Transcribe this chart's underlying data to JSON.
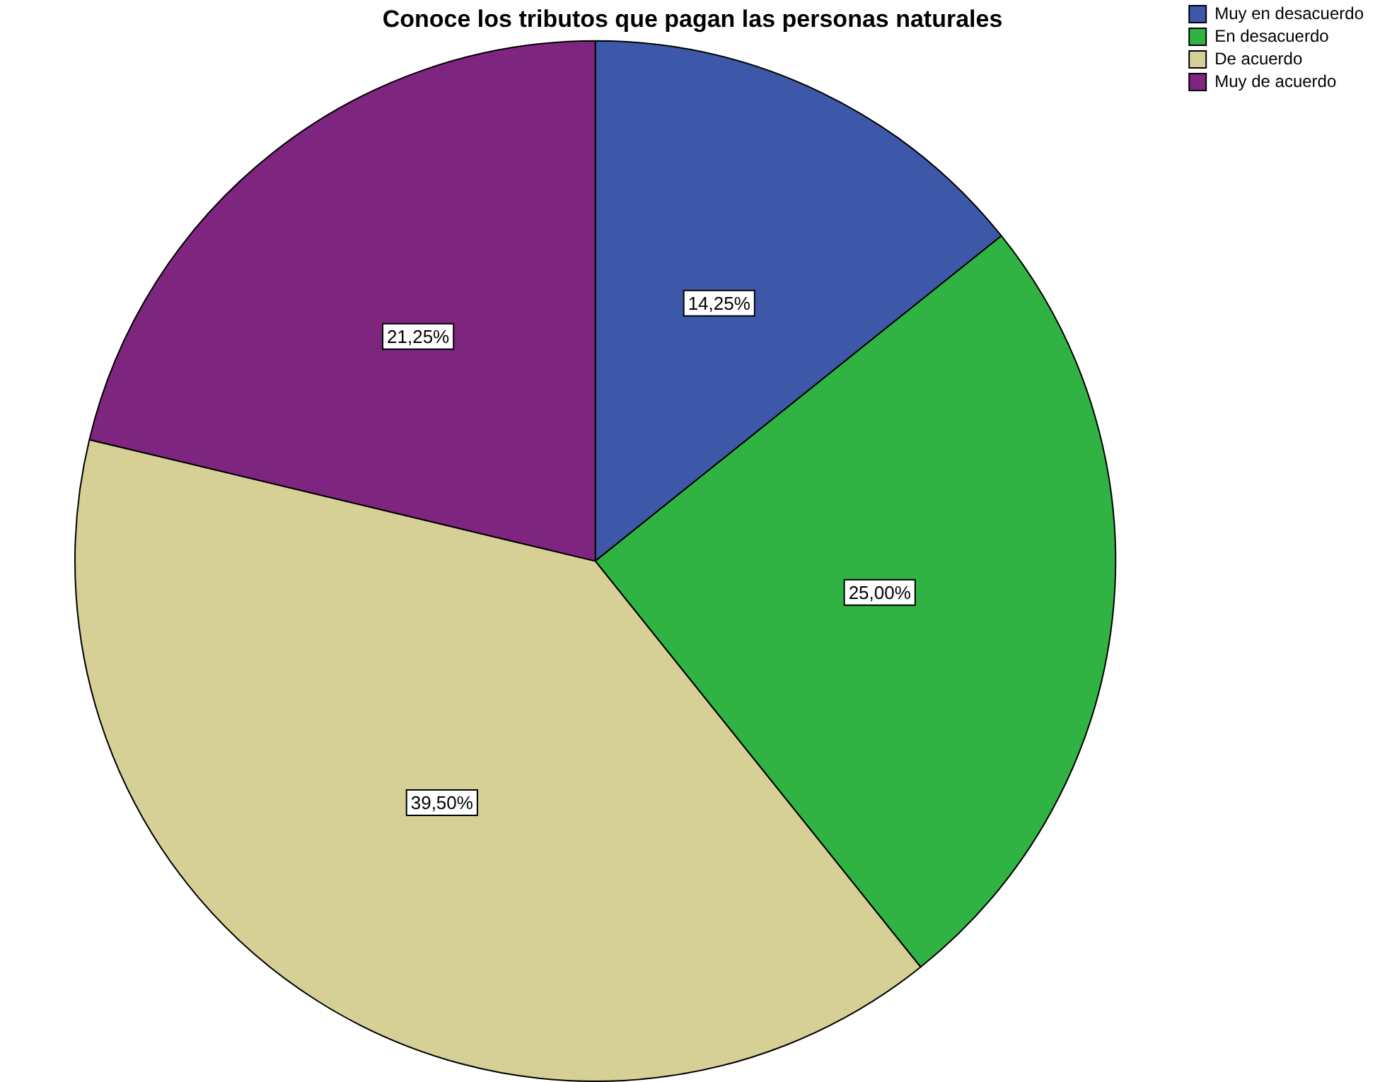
{
  "chart_data": {
    "type": "pie",
    "title": "Conoce los tributos que pagan las personas naturales",
    "categories": [
      "Muy en desacuerdo",
      "En desacuerdo",
      "De acuerdo",
      "Muy de acuerdo"
    ],
    "values": [
      14.25,
      25.0,
      39.5,
      21.25
    ],
    "colors": [
      "#3d58a8",
      "#31b343",
      "#d6cf96",
      "#7d257f"
    ],
    "value_labels": [
      "14,25%",
      "25,00%",
      "39,50%",
      "21,25%"
    ],
    "legend": "top right"
  }
}
